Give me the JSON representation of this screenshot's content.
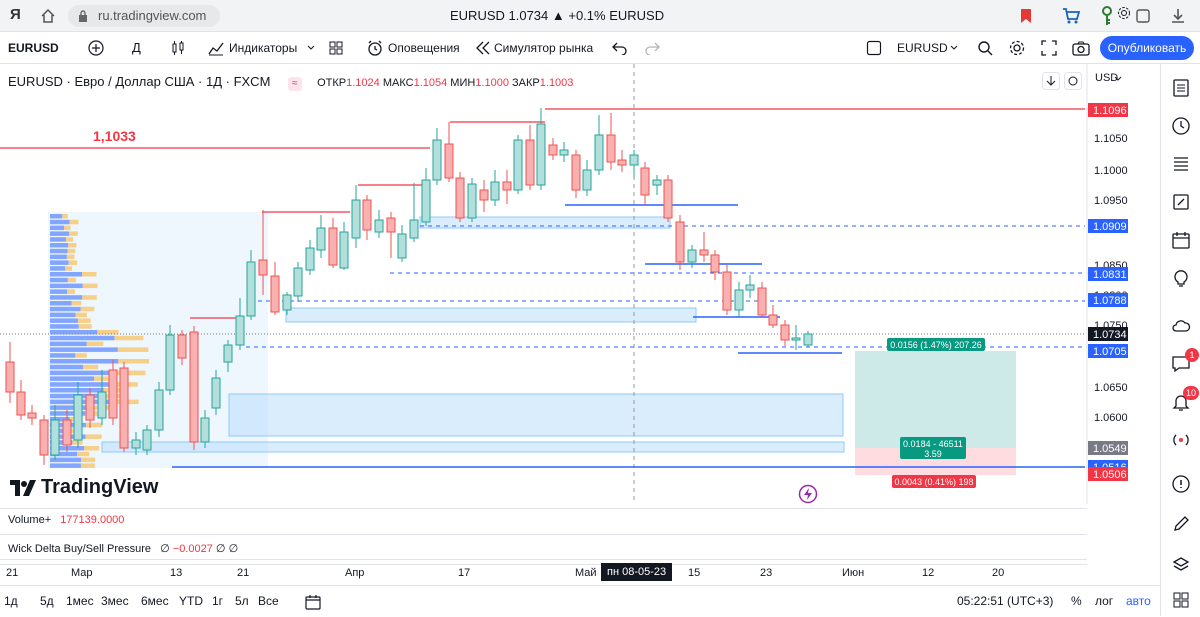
{
  "browser": {
    "logo": "Я",
    "url": "ru.tradingview.com",
    "title": "EURUSD 1.0734 ▲ +0.1% EURUSD"
  },
  "toolbar": {
    "symbol": "EURUSD",
    "interval": "Д",
    "indicators": "Индикаторы",
    "alerts": "Оповещения",
    "replay": "Симулятор рынка",
    "compare_symbol": "EURUSD",
    "publish": "Опубликовать"
  },
  "legend": {
    "title": "EURUSD · Евро / Доллар США · 1Д · FXCM",
    "o_label": "ОТКР",
    "o": "1.1024",
    "h_label": "МАКС",
    "h": "1.1054",
    "l_label": "МИН",
    "l": "1.1000",
    "c_label": "ЗАКР",
    "c": "1.1003",
    "level_label": "1,1033"
  },
  "price_axis": {
    "currency": "USD",
    "ticks": [
      "1.1050",
      "1.1000",
      "1.0950",
      "1.0850",
      "1.0800",
      "1.0750",
      "1.0650",
      "1.0600"
    ],
    "tags": [
      {
        "label": "1.1096",
        "color": "#f23645"
      },
      {
        "label": "1.0909",
        "color": "#2962ff"
      },
      {
        "label": "1.0831",
        "color": "#2962ff"
      },
      {
        "label": "1.0788",
        "color": "#2962ff"
      },
      {
        "label": "1.0734",
        "color": "#131722"
      },
      {
        "label": "1.0705",
        "color": "#2962ff"
      },
      {
        "label": "1.0549",
        "color": "#787b86"
      },
      {
        "label": "1.0516",
        "color": "#2962ff"
      },
      {
        "label": "1.0506",
        "color": "#f23645"
      }
    ]
  },
  "position": {
    "target": "0.0156 (1.47%) 207.26",
    "middle1": "0.0184 - 46511",
    "middle2": "3.59",
    "stop": "0.0043 (0.41%) 198"
  },
  "watermark": "TradingView",
  "panes": {
    "volume_label": "Volume+",
    "volume_value": "177139.0000",
    "delta_label": "Wick Delta Buy/Sell Pressure",
    "delta_v1": "∅",
    "delta_v2": "−0.0027",
    "delta_v3": "∅",
    "delta_v4": "∅"
  },
  "time_axis": {
    "labels": [
      "21",
      "Мар",
      "13",
      "21",
      "Апр",
      "17",
      "Май",
      "15",
      "23",
      "Июн",
      "12",
      "20"
    ],
    "crosshair": "пн 08-05-23"
  },
  "bottom": {
    "ranges": [
      "1д",
      "5д",
      "1мес",
      "3мес",
      "6мес",
      "YTD",
      "1г",
      "5л",
      "Все"
    ],
    "time": "05:22:51 (UTC+3)",
    "percent": "%",
    "log": "лог",
    "auto": "авто"
  },
  "badges": {
    "chat": "1",
    "notifications": "10"
  },
  "colors": {
    "up": "#26a69a",
    "down": "#ef5350",
    "accent": "#2962ff"
  }
}
